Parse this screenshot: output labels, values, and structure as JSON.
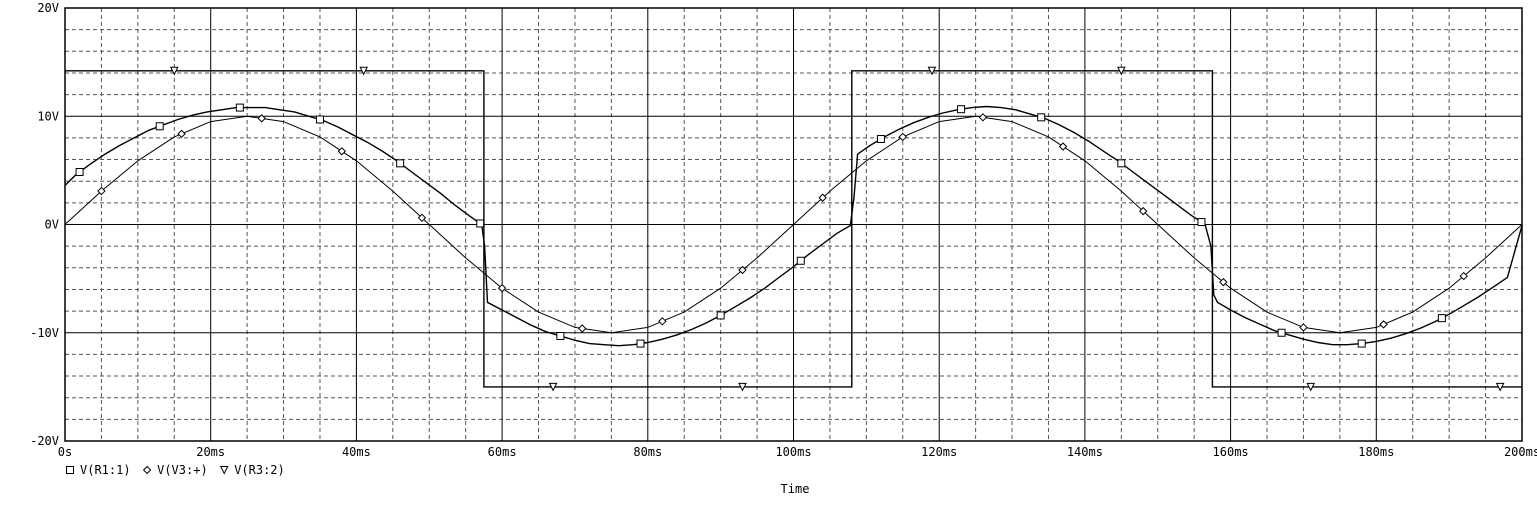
{
  "chart_data": {
    "type": "line",
    "title": "",
    "xlabel": "Time",
    "ylabel": "",
    "xlim": [
      0,
      200
    ],
    "ylim": [
      -20,
      20
    ],
    "x_unit": "ms",
    "y_unit": "V",
    "x_ticks": [
      0,
      20,
      40,
      60,
      80,
      100,
      120,
      140,
      160,
      180,
      200
    ],
    "x_tick_labels": [
      "0s",
      "20ms",
      "40ms",
      "60ms",
      "80ms",
      "100ms",
      "120ms",
      "140ms",
      "160ms",
      "180ms",
      "200ms"
    ],
    "y_ticks": [
      20,
      10,
      0,
      -10,
      -20
    ],
    "y_tick_labels": [
      "20V",
      "10V",
      "0V",
      "-10V",
      "-20V"
    ],
    "grid": true,
    "legend_position": "bottom-left",
    "legend": [
      {
        "marker": "square",
        "text": "V(R1:1)"
      },
      {
        "marker": "diamond",
        "text": "V(V3:+)"
      },
      {
        "marker": "triangle-down",
        "text": "V(R3:2)"
      }
    ],
    "series": [
      {
        "name": "V(R1:1)",
        "marker": "square",
        "x": [
          0,
          1.5,
          3.5,
          5.5,
          7.5,
          9.5,
          11.5,
          13.5,
          15.5,
          17.5,
          19.5,
          21.5,
          23.5,
          25.5,
          27.5,
          29.5,
          31.5,
          33.5,
          35.5,
          37.5,
          39.5,
          41.5,
          43.5,
          45.5,
          47.5,
          49.5,
          51.5,
          53.5,
          55.5,
          57.2,
          57.6,
          58,
          60,
          62,
          64,
          66,
          68,
          70,
          72,
          74,
          76,
          78,
          80,
          82,
          84,
          86,
          88,
          90,
          92,
          94,
          96,
          98,
          100,
          102,
          104,
          106,
          107.8,
          108.3,
          108.8,
          110.5,
          112.5,
          114.5,
          116.5,
          118.5,
          120.5,
          122.5,
          124.5,
          126.5,
          128.5,
          130.5,
          132.5,
          134.5,
          136.5,
          138.5,
          140.5,
          142.5,
          144.5,
          146.5,
          148.5,
          150.5,
          152.5,
          154.5,
          156.5,
          157.3,
          157.7,
          158.2,
          160,
          162,
          164,
          166,
          168,
          170,
          172,
          174,
          176,
          178,
          180,
          182,
          184,
          186,
          188,
          190,
          192,
          194,
          196,
          198,
          200
        ],
        "y": [
          3.6,
          4.6,
          5.6,
          6.5,
          7.3,
          8.0,
          8.7,
          9.2,
          9.7,
          10.1,
          10.4,
          10.6,
          10.8,
          10.8,
          10.8,
          10.6,
          10.4,
          10.0,
          9.6,
          9.0,
          8.3,
          7.6,
          6.8,
          5.9,
          4.9,
          3.9,
          2.9,
          1.8,
          0.8,
          0,
          -2.0,
          -7.2,
          -7.9,
          -8.6,
          -9.3,
          -9.9,
          -10.3,
          -10.7,
          -11.0,
          -11.1,
          -11.2,
          -11.1,
          -10.9,
          -10.6,
          -10.2,
          -9.7,
          -9.1,
          -8.4,
          -7.6,
          -6.8,
          -5.9,
          -4.9,
          -3.9,
          -2.8,
          -1.8,
          -0.8,
          -0.1,
          2.5,
          6.5,
          7.3,
          8.1,
          8.8,
          9.4,
          9.9,
          10.3,
          10.6,
          10.8,
          10.9,
          10.8,
          10.6,
          10.2,
          9.8,
          9.2,
          8.5,
          7.7,
          6.8,
          5.9,
          4.9,
          3.9,
          2.9,
          1.9,
          0.9,
          0,
          -2.0,
          -6.5,
          -7.2,
          -7.9,
          -8.6,
          -9.2,
          -9.8,
          -10.2,
          -10.6,
          -10.9,
          -11.1,
          -11.1,
          -11.0,
          -10.8,
          -10.5,
          -10.1,
          -9.6,
          -9.0,
          -8.3,
          -7.5,
          -6.7,
          -5.8,
          -4.9,
          -0.1
        ]
      },
      {
        "name": "V(V3:+)",
        "marker": "diamond",
        "x": [
          0,
          5,
          10,
          15,
          20,
          25,
          30,
          35,
          40,
          45,
          50,
          55,
          60,
          65,
          70,
          75,
          80,
          85,
          90,
          95,
          100,
          105,
          110,
          115,
          120,
          125,
          130,
          135,
          140,
          145,
          150,
          155,
          160,
          165,
          170,
          175,
          180,
          185,
          190,
          195,
          200
        ],
        "y": [
          0,
          3.09,
          5.88,
          8.09,
          9.51,
          10,
          9.51,
          8.09,
          5.88,
          3.09,
          0,
          -3.09,
          -5.88,
          -8.09,
          -9.51,
          -10,
          -9.51,
          -8.09,
          -5.88,
          -3.09,
          0,
          3.09,
          5.88,
          8.09,
          9.51,
          10,
          9.51,
          8.09,
          5.88,
          3.09,
          0,
          -3.09,
          -5.88,
          -8.09,
          -9.51,
          -10,
          -9.51,
          -8.09,
          -5.88,
          -3.09,
          0
        ]
      },
      {
        "name": "V(R3:2)",
        "marker": "triangle-down",
        "x": [
          0,
          57.5,
          57.5,
          108.0,
          108.0,
          157.5,
          157.5,
          200
        ],
        "y": [
          14.2,
          14.2,
          -15.0,
          -15.0,
          14.2,
          14.2,
          -15.0,
          -15.0
        ]
      }
    ]
  }
}
